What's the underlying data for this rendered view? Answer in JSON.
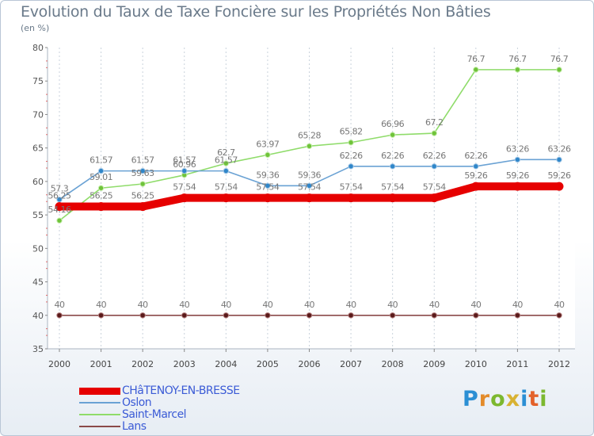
{
  "header": {
    "title": "Evolution du Taux de Taxe Foncière sur les Propriétés Non Bâties",
    "unit": "(en %)"
  },
  "logo": {
    "text": "Proxiti",
    "colors": [
      "#2b8fd4",
      "#e38b2a",
      "#7cb82f",
      "#d8b232",
      "#2b8fd4",
      "#e3612a",
      "#7cb82f"
    ]
  },
  "chart_data": {
    "type": "line",
    "title": "Evolution du Taux de Taxe Foncière sur les Propriétés Non Bâties",
    "ylabel": "(en %)",
    "xlabel": "",
    "ylim": [
      35,
      80
    ],
    "yticks": [
      35,
      40,
      45,
      50,
      55,
      60,
      65,
      70,
      75,
      80
    ],
    "grid": "vertical dashed",
    "categories": [
      "2000",
      "2001",
      "2002",
      "2003",
      "2004",
      "2005",
      "2006",
      "2007",
      "2008",
      "2009",
      "2010",
      "2011",
      "2012"
    ],
    "series": [
      {
        "name": "CHâTENOY-EN-BRESSE",
        "color": "#e60000",
        "values": [
          56.25,
          56.25,
          56.25,
          57.54,
          57.54,
          57.54,
          57.54,
          57.54,
          57.54,
          57.54,
          59.26,
          59.26,
          59.26
        ],
        "labels": [
          "56.25",
          "56.25",
          "56.25",
          "57.54",
          "57.54",
          "57.54",
          "57.54",
          "57.54",
          "57.54",
          "57.54",
          "59.26",
          "59.26",
          "59.26"
        ]
      },
      {
        "name": "Oslon",
        "color": "#6aa2d4",
        "values": [
          57.3,
          61.57,
          61.57,
          61.57,
          61.57,
          59.36,
          59.36,
          62.26,
          62.26,
          62.26,
          62.26,
          63.26,
          63.26
        ],
        "labels": [
          "57.3",
          "61.57",
          "61.57",
          "61.57",
          "61.57",
          "59.36",
          "59.36",
          "62.26",
          "62.26",
          "62.26",
          "62.26",
          "63.26",
          "63.26"
        ]
      },
      {
        "name": "Saint-Marcel",
        "color": "#8fdc6a",
        "values": [
          54.16,
          59.01,
          59.63,
          60.96,
          62.7,
          63.97,
          65.28,
          65.82,
          66.96,
          67.2,
          76.7,
          76.7,
          76.7
        ],
        "labels": [
          "54.16",
          "59.01",
          "59.63",
          "60.96",
          "62.7",
          "63.97",
          "65.28",
          "65.82",
          "66.96",
          "67.2",
          "76.7",
          "76.7",
          "76.7"
        ]
      },
      {
        "name": "Lans",
        "color": "#8b4a4a",
        "values": [
          40,
          40,
          40,
          40,
          40,
          40,
          40,
          40,
          40,
          40,
          40,
          40,
          40
        ],
        "labels": [
          "40",
          "40",
          "40",
          "40",
          "40",
          "40",
          "40",
          "40",
          "40",
          "40",
          "40",
          "40",
          "40"
        ]
      }
    ]
  }
}
